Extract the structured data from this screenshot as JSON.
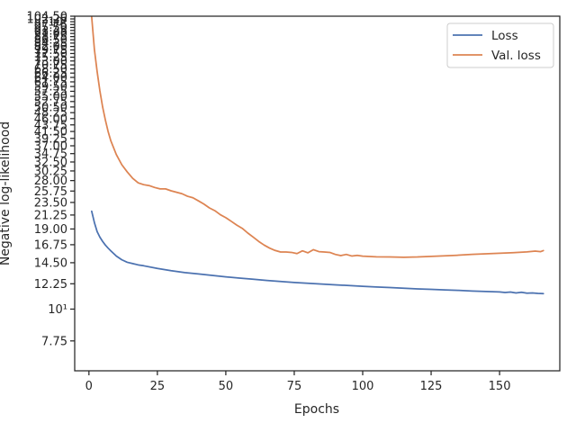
{
  "chart_data": {
    "type": "line",
    "xlabel": "Epochs",
    "ylabel": "Negative log-likelihood",
    "y_scale": "log",
    "xlim": [
      -5.2,
      172
    ],
    "ylim": [
      6.1,
      104.5
    ],
    "x_ticks": [
      0,
      25,
      50,
      75,
      100,
      125,
      150
    ],
    "x_tick_labels": [
      "0",
      "25",
      "50",
      "75",
      "100",
      "125",
      "150"
    ],
    "y_ticks": [
      7.75,
      10,
      12.25,
      14.5,
      16.75,
      19,
      21.25,
      23.5,
      25.75,
      28,
      30.25,
      32.5,
      34.75,
      37,
      39.25,
      41.5,
      43.75,
      46,
      48.25,
      50.5,
      52.75,
      55,
      57.25,
      59.5,
      61.75,
      64,
      66.25,
      68.5,
      70.75,
      73,
      75.25,
      77.5,
      79.75,
      82,
      84.25,
      86.5,
      88.75,
      91,
      93.25,
      95.5,
      97.75,
      100,
      102.25,
      104.5
    ],
    "y_tick_labels": [
      "7.75",
      "10¹",
      "12.25",
      "14.50",
      "16.75",
      "19.00",
      "21.25",
      "23.50",
      "25.75",
      "28.00",
      "30.25",
      "32.50",
      "34.75",
      "37.00",
      "39.25",
      "41.50",
      "43.75",
      "46.00",
      "48.25",
      "50.50",
      "52.75",
      "55.00",
      "57.25",
      "59.50",
      "61.75",
      "64.00",
      "66.25",
      "68.50",
      "70.75",
      "73.00",
      "75.25",
      "77.50",
      "79.75",
      "82.00",
      "84.25",
      "86.50",
      "88.75",
      "91.00",
      "93.25",
      "95.50",
      "97.75",
      "10²",
      "102.25",
      "104.50"
    ],
    "legend_position": "upper right",
    "grid": false,
    "series": [
      {
        "name": "Loss",
        "color": "#4c72b0",
        "points": [
          [
            1,
            21.9
          ],
          [
            2,
            20.0
          ],
          [
            3,
            18.6
          ],
          [
            4,
            17.8
          ],
          [
            5,
            17.2
          ],
          [
            6,
            16.7
          ],
          [
            7,
            16.3
          ],
          [
            8,
            15.95
          ],
          [
            10,
            15.3
          ],
          [
            12,
            14.85
          ],
          [
            14,
            14.55
          ],
          [
            16,
            14.4
          ],
          [
            18,
            14.25
          ],
          [
            20,
            14.15
          ],
          [
            25,
            13.85
          ],
          [
            30,
            13.6
          ],
          [
            35,
            13.4
          ],
          [
            40,
            13.25
          ],
          [
            45,
            13.1
          ],
          [
            50,
            12.95
          ],
          [
            55,
            12.82
          ],
          [
            60,
            12.7
          ],
          [
            65,
            12.58
          ],
          [
            70,
            12.48
          ],
          [
            75,
            12.38
          ],
          [
            80,
            12.3
          ],
          [
            85,
            12.22
          ],
          [
            90,
            12.14
          ],
          [
            95,
            12.08
          ],
          [
            100,
            12.0
          ],
          [
            105,
            11.94
          ],
          [
            110,
            11.88
          ],
          [
            115,
            11.82
          ],
          [
            120,
            11.76
          ],
          [
            125,
            11.72
          ],
          [
            130,
            11.66
          ],
          [
            135,
            11.62
          ],
          [
            140,
            11.56
          ],
          [
            145,
            11.52
          ],
          [
            150,
            11.47
          ],
          [
            152,
            11.42
          ],
          [
            154,
            11.46
          ],
          [
            156,
            11.38
          ],
          [
            158,
            11.44
          ],
          [
            160,
            11.36
          ],
          [
            162,
            11.38
          ],
          [
            164,
            11.34
          ],
          [
            166,
            11.32
          ]
        ]
      },
      {
        "name": "Val. loss",
        "color": "#dd8452",
        "points": [
          [
            1,
            104
          ],
          [
            2,
            80
          ],
          [
            3,
            67
          ],
          [
            4,
            57.5
          ],
          [
            5,
            50.5
          ],
          [
            6,
            45.5
          ],
          [
            7,
            41.5
          ],
          [
            8,
            38.5
          ],
          [
            10,
            34.5
          ],
          [
            12,
            31.8
          ],
          [
            14,
            30.0
          ],
          [
            16,
            28.5
          ],
          [
            18,
            27.5
          ],
          [
            20,
            27.1
          ],
          [
            22,
            26.9
          ],
          [
            24,
            26.5
          ],
          [
            26,
            26.2
          ],
          [
            28,
            26.2
          ],
          [
            30,
            25.8
          ],
          [
            32,
            25.5
          ],
          [
            34,
            25.2
          ],
          [
            36,
            24.7
          ],
          [
            38,
            24.4
          ],
          [
            40,
            23.8
          ],
          [
            42,
            23.2
          ],
          [
            44,
            22.5
          ],
          [
            46,
            22.0
          ],
          [
            48,
            21.3
          ],
          [
            50,
            20.8
          ],
          [
            52,
            20.2
          ],
          [
            54,
            19.6
          ],
          [
            56,
            19.1
          ],
          [
            58,
            18.4
          ],
          [
            60,
            17.8
          ],
          [
            62,
            17.2
          ],
          [
            64,
            16.7
          ],
          [
            66,
            16.3
          ],
          [
            68,
            16.0
          ],
          [
            70,
            15.8
          ],
          [
            72,
            15.8
          ],
          [
            74,
            15.75
          ],
          [
            76,
            15.6
          ],
          [
            78,
            15.95
          ],
          [
            80,
            15.7
          ],
          [
            82,
            16.1
          ],
          [
            84,
            15.85
          ],
          [
            86,
            15.8
          ],
          [
            88,
            15.75
          ],
          [
            90,
            15.5
          ],
          [
            92,
            15.35
          ],
          [
            94,
            15.5
          ],
          [
            96,
            15.3
          ],
          [
            98,
            15.38
          ],
          [
            100,
            15.28
          ],
          [
            105,
            15.2
          ],
          [
            110,
            15.18
          ],
          [
            115,
            15.15
          ],
          [
            120,
            15.18
          ],
          [
            125,
            15.25
          ],
          [
            130,
            15.32
          ],
          [
            135,
            15.4
          ],
          [
            140,
            15.5
          ],
          [
            145,
            15.58
          ],
          [
            150,
            15.65
          ],
          [
            155,
            15.72
          ],
          [
            160,
            15.82
          ],
          [
            163,
            15.92
          ],
          [
            165,
            15.85
          ],
          [
            166,
            15.98
          ]
        ]
      }
    ]
  }
}
